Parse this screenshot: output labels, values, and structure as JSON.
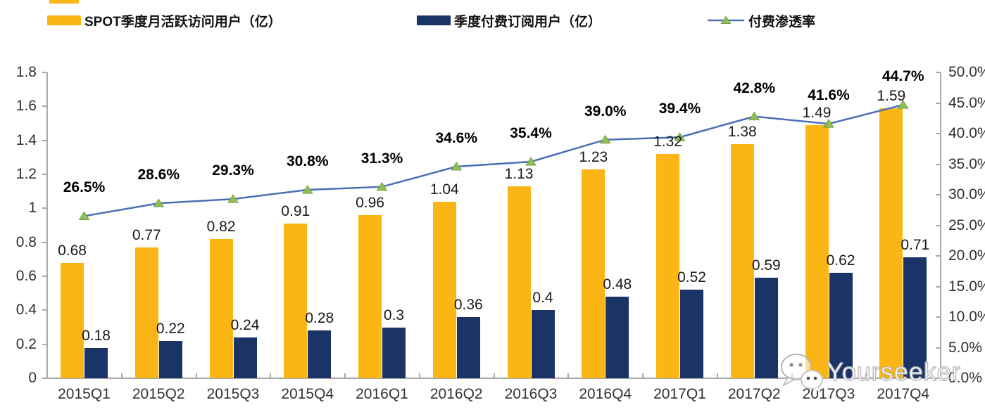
{
  "legend": {
    "items": [
      {
        "label": "SPOT季度月活跃访问用户（亿）",
        "swatch": "yellow-bar"
      },
      {
        "label": "季度付费订阅用户（亿）",
        "swatch": "navy-bar"
      },
      {
        "label": "付费渗透率",
        "swatch": "line-with-triangle-marker"
      }
    ]
  },
  "chart_data": {
    "type": "bar",
    "subtype": "combo-dual-axis-bar-line",
    "title": "",
    "xlabel": "",
    "ylabel": "",
    "grid": false,
    "legend_position": "top",
    "categories": [
      "2015Q1",
      "2015Q2",
      "2015Q3",
      "2015Q4",
      "2016Q1",
      "2016Q2",
      "2016Q3",
      "2016Q4",
      "2017Q1",
      "2017Q2",
      "2017Q3",
      "2017Q4"
    ],
    "series": [
      {
        "name": "SPOT季度月活跃访问用户（亿）",
        "type": "bar",
        "axis": "left",
        "color": "#FBB514",
        "values": [
          0.68,
          0.77,
          0.82,
          0.91,
          0.96,
          1.04,
          1.13,
          1.23,
          1.32,
          1.38,
          1.49,
          1.59
        ],
        "labels": [
          "0.68",
          "0.77",
          "0.82",
          "0.91",
          "0.96",
          "1.04",
          "1.13",
          "1.23",
          "1.32",
          "1.38",
          "1.49",
          "1.59"
        ]
      },
      {
        "name": "季度付费订阅用户（亿）",
        "type": "bar",
        "axis": "left",
        "color": "#1A3467",
        "values": [
          0.18,
          0.22,
          0.24,
          0.28,
          0.3,
          0.36,
          0.4,
          0.48,
          0.52,
          0.59,
          0.62,
          0.71
        ],
        "labels": [
          "0.18",
          "0.22",
          "0.24",
          "0.28",
          "0.3",
          "0.36",
          "0.4",
          "0.48",
          "0.52",
          "0.59",
          "0.62",
          "0.71"
        ]
      },
      {
        "name": "付费渗透率",
        "type": "line",
        "axis": "right",
        "color": "#4A6FB5",
        "marker": "triangle",
        "marker_color": "#8FBE56",
        "values": [
          26.5,
          28.6,
          29.3,
          30.8,
          31.3,
          34.6,
          35.4,
          39.0,
          39.4,
          42.8,
          41.6,
          44.7
        ],
        "labels": [
          "26.5%",
          "28.6%",
          "29.3%",
          "30.8%",
          "31.3%",
          "34.6%",
          "35.4%",
          "39.0%",
          "39.4%",
          "42.8%",
          "41.6%",
          "44.7%"
        ]
      }
    ],
    "left_axis": {
      "min": 0,
      "max": 1.8,
      "ticks": [
        {
          "label": "0",
          "value": 0
        },
        {
          "label": "0.2",
          "value": 0.2
        },
        {
          "label": "0.4",
          "value": 0.4
        },
        {
          "label": "0.6",
          "value": 0.6
        },
        {
          "label": "0.8",
          "value": 0.8
        },
        {
          "label": "1",
          "value": 1
        },
        {
          "label": "1.2",
          "value": 1.2
        },
        {
          "label": "1.4",
          "value": 1.4
        },
        {
          "label": "1.6",
          "value": 1.6
        },
        {
          "label": "1.8",
          "value": 1.8
        }
      ]
    },
    "right_axis": {
      "min": 0,
      "max": 50,
      "ticks": [
        {
          "label": "0.0%",
          "value": 0
        },
        {
          "label": "5.0%",
          "value": 5
        },
        {
          "label": "10.0%",
          "value": 10
        },
        {
          "label": "15.0%",
          "value": 15
        },
        {
          "label": "20.0%",
          "value": 20
        },
        {
          "label": "25.0%",
          "value": 25
        },
        {
          "label": "30.0%",
          "value": 30
        },
        {
          "label": "35.0%",
          "value": 35
        },
        {
          "label": "40.0%",
          "value": 40
        },
        {
          "label": "45.0%",
          "value": 45
        },
        {
          "label": "50.0%",
          "value": 50
        }
      ]
    }
  },
  "watermark": {
    "text": "Yourseeker",
    "icon": "wechat-bubbles-icon"
  },
  "colors": {
    "bar_yellow": "#FBB514",
    "bar_navy": "#1A3467",
    "line_blue": "#4A6FB5",
    "marker_green": "#8FBE56",
    "marker_green_edge": "#74A33F",
    "axis_gray": "#A9A9A9",
    "tick_text": "#303030"
  }
}
